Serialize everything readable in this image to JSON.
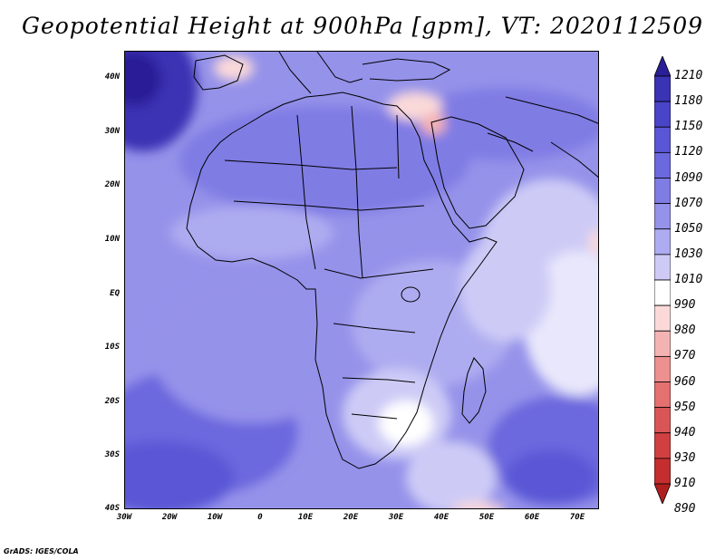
{
  "title": "Geopotential Height at 900hPa [gpm], VT: 2020112509",
  "credit": "GrADS: IGES/COLA",
  "map": {
    "projection": "lat-lon",
    "lon_range": [
      -30,
      75
    ],
    "lat_range": [
      -40,
      45
    ],
    "lat_labels": [
      "40N",
      "30N",
      "20N",
      "10N",
      "EQ",
      "10S",
      "20S",
      "30S",
      "40S"
    ],
    "lon_labels": [
      "30W",
      "20W",
      "10W",
      "0",
      "10E",
      "20E",
      "30E",
      "40E",
      "50E",
      "60E",
      "70E"
    ]
  },
  "colorbar": {
    "labels": [
      "1210",
      "1180",
      "1150",
      "1120",
      "1090",
      "1070",
      "1050",
      "1030",
      "1010",
      "990",
      "980",
      "970",
      "960",
      "950",
      "940",
      "930",
      "910",
      "890"
    ],
    "colors": [
      "#2a1f96",
      "#3a33b4",
      "#4a44c8",
      "#5a56d6",
      "#6c68de",
      "#7f7ce4",
      "#9592ea",
      "#aeacf0",
      "#cdcbf6",
      "#ffffff",
      "#fbd9d9",
      "#f4b3b3",
      "#ec9090",
      "#e47070",
      "#da5656",
      "#d04040",
      "#c42e2e",
      "#b01f1f"
    ]
  }
}
